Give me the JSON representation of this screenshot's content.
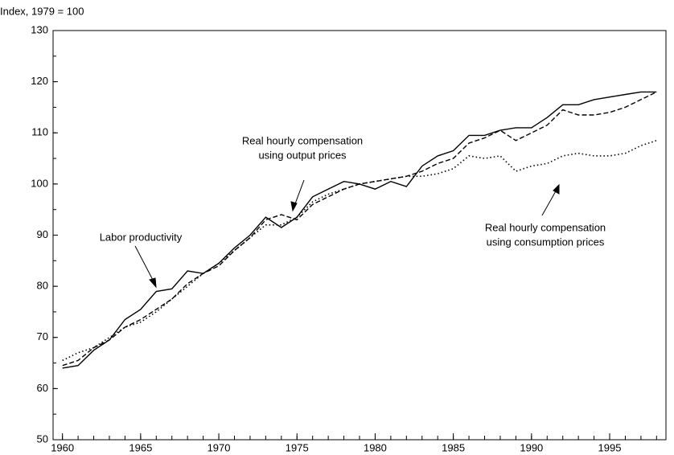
{
  "chart_data": {
    "type": "line",
    "y_label": "Index, 1979 = 100",
    "x": [
      1960,
      1961,
      1962,
      1963,
      1964,
      1965,
      1966,
      1967,
      1968,
      1969,
      1970,
      1971,
      1972,
      1973,
      1974,
      1975,
      1976,
      1977,
      1978,
      1979,
      1980,
      1981,
      1982,
      1983,
      1984,
      1985,
      1986,
      1987,
      1988,
      1989,
      1990,
      1991,
      1992,
      1993,
      1994,
      1995,
      1996,
      1997,
      1998
    ],
    "series": [
      {
        "color": "#000000",
        "style": "solid",
        "values": [
          64,
          64.5,
          67.5,
          69.5,
          73.5,
          75.5,
          79,
          79.5,
          83,
          82.5,
          84.5,
          87.5,
          90,
          93.5,
          91.5,
          93.5,
          97.5,
          99,
          100.5,
          100,
          99,
          100.5,
          99.5,
          103.5,
          105.5,
          106.5,
          109.5,
          109.5,
          110.5,
          111,
          111,
          113,
          115.5,
          115.5,
          116.5,
          117,
          117.5,
          118,
          118
        ]
      },
      {
        "color": "#000000",
        "style": "dashed",
        "values": [
          64.5,
          65.5,
          68,
          69.5,
          72,
          73.5,
          75.5,
          77.5,
          80.5,
          82.5,
          84,
          87,
          89.5,
          93,
          94,
          93,
          96,
          97.5,
          99,
          100,
          100.5,
          101,
          101.5,
          102.5,
          104,
          105,
          108,
          109,
          110.5,
          108.5,
          110,
          111.5,
          114.5,
          113.5,
          113.5,
          114,
          115,
          116.5,
          118
        ]
      },
      {
        "color": "#000000",
        "style": "dotted",
        "values": [
          65.5,
          67,
          68,
          70,
          72,
          73,
          75,
          77.5,
          80,
          82.5,
          84.5,
          87,
          89.5,
          92,
          92,
          93.5,
          96.5,
          98,
          99,
          100,
          100.5,
          101,
          101.5,
          101.5,
          102,
          103,
          105.5,
          105,
          105.5,
          102.5,
          103.5,
          104,
          105.5,
          106,
          105.5,
          105.5,
          106,
          107.5,
          108.5
        ]
      }
    ],
    "annotations": [
      {
        "lines": [
          "Labor productivity"
        ]
      },
      {
        "lines": [
          "Real hourly compensation",
          "using output prices"
        ]
      },
      {
        "lines": [
          "Real hourly compensation",
          "using consumption prices"
        ]
      }
    ],
    "xlim": [
      1959.4,
      1998.6
    ],
    "xticks": [
      1960,
      1965,
      1970,
      1975,
      1980,
      1985,
      1990,
      1995
    ],
    "ylim": [
      50,
      130
    ],
    "yticks": [
      50,
      60,
      70,
      80,
      90,
      100,
      110,
      120,
      130
    ],
    "grid": false
  }
}
